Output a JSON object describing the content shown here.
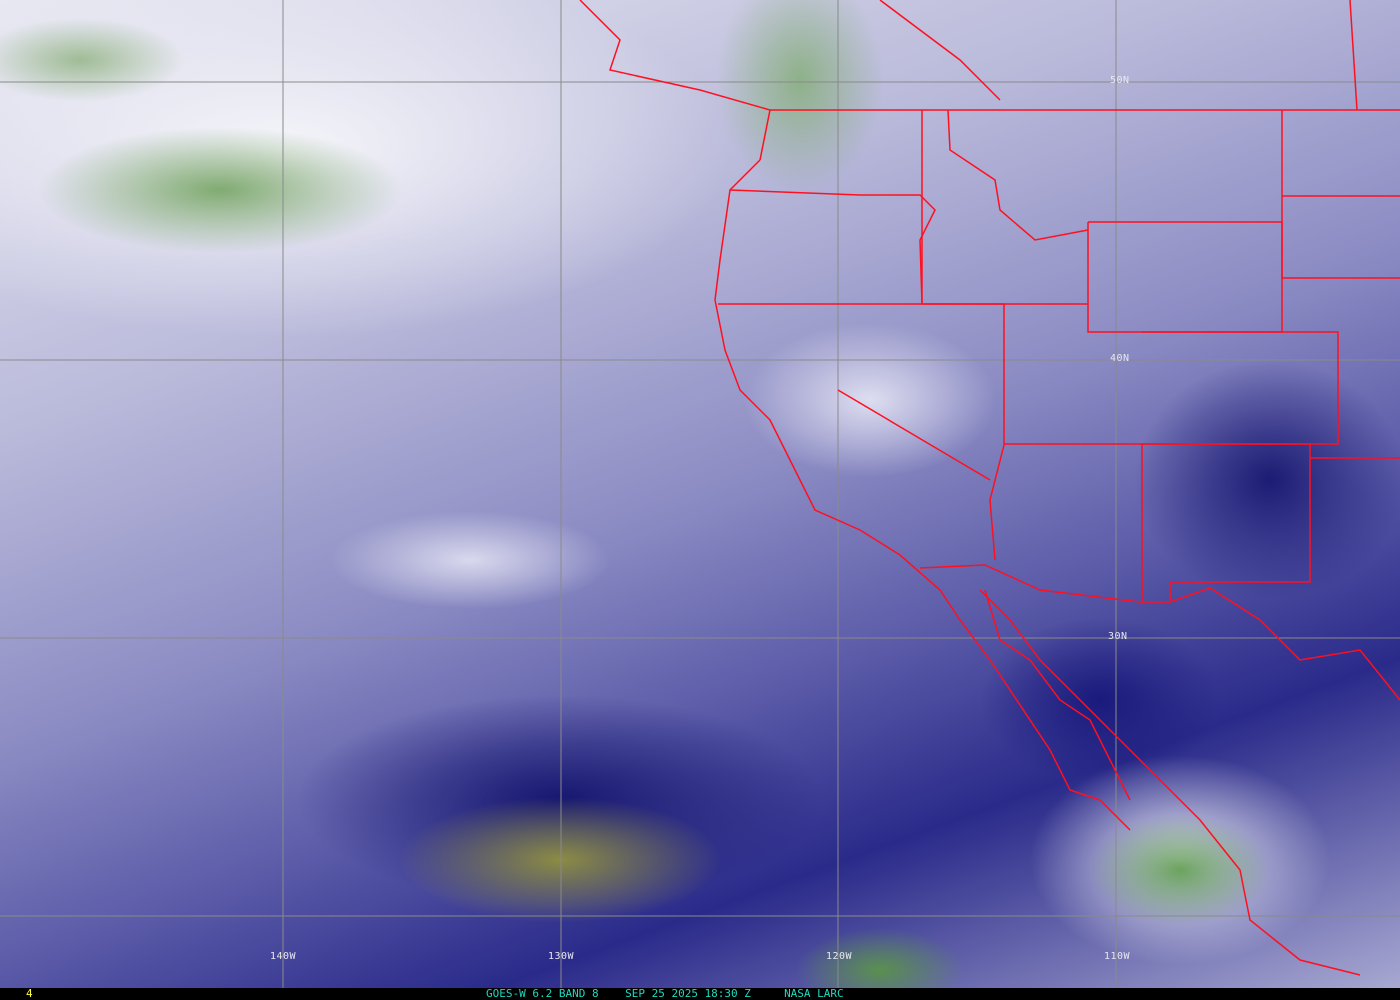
{
  "map": {
    "latitude_labels": [
      "50N",
      "40N",
      "30N"
    ],
    "longitude_labels": [
      "140W",
      "130W",
      "120W",
      "110W"
    ],
    "border_color": "#ff1020",
    "grid_color": "#888888"
  },
  "footer": {
    "frame_number": "4",
    "satellite": "GOES-W 6.2 BAND 8",
    "datetime": "SEP 25 2025 18:30 Z",
    "source": "NASA LARC"
  }
}
